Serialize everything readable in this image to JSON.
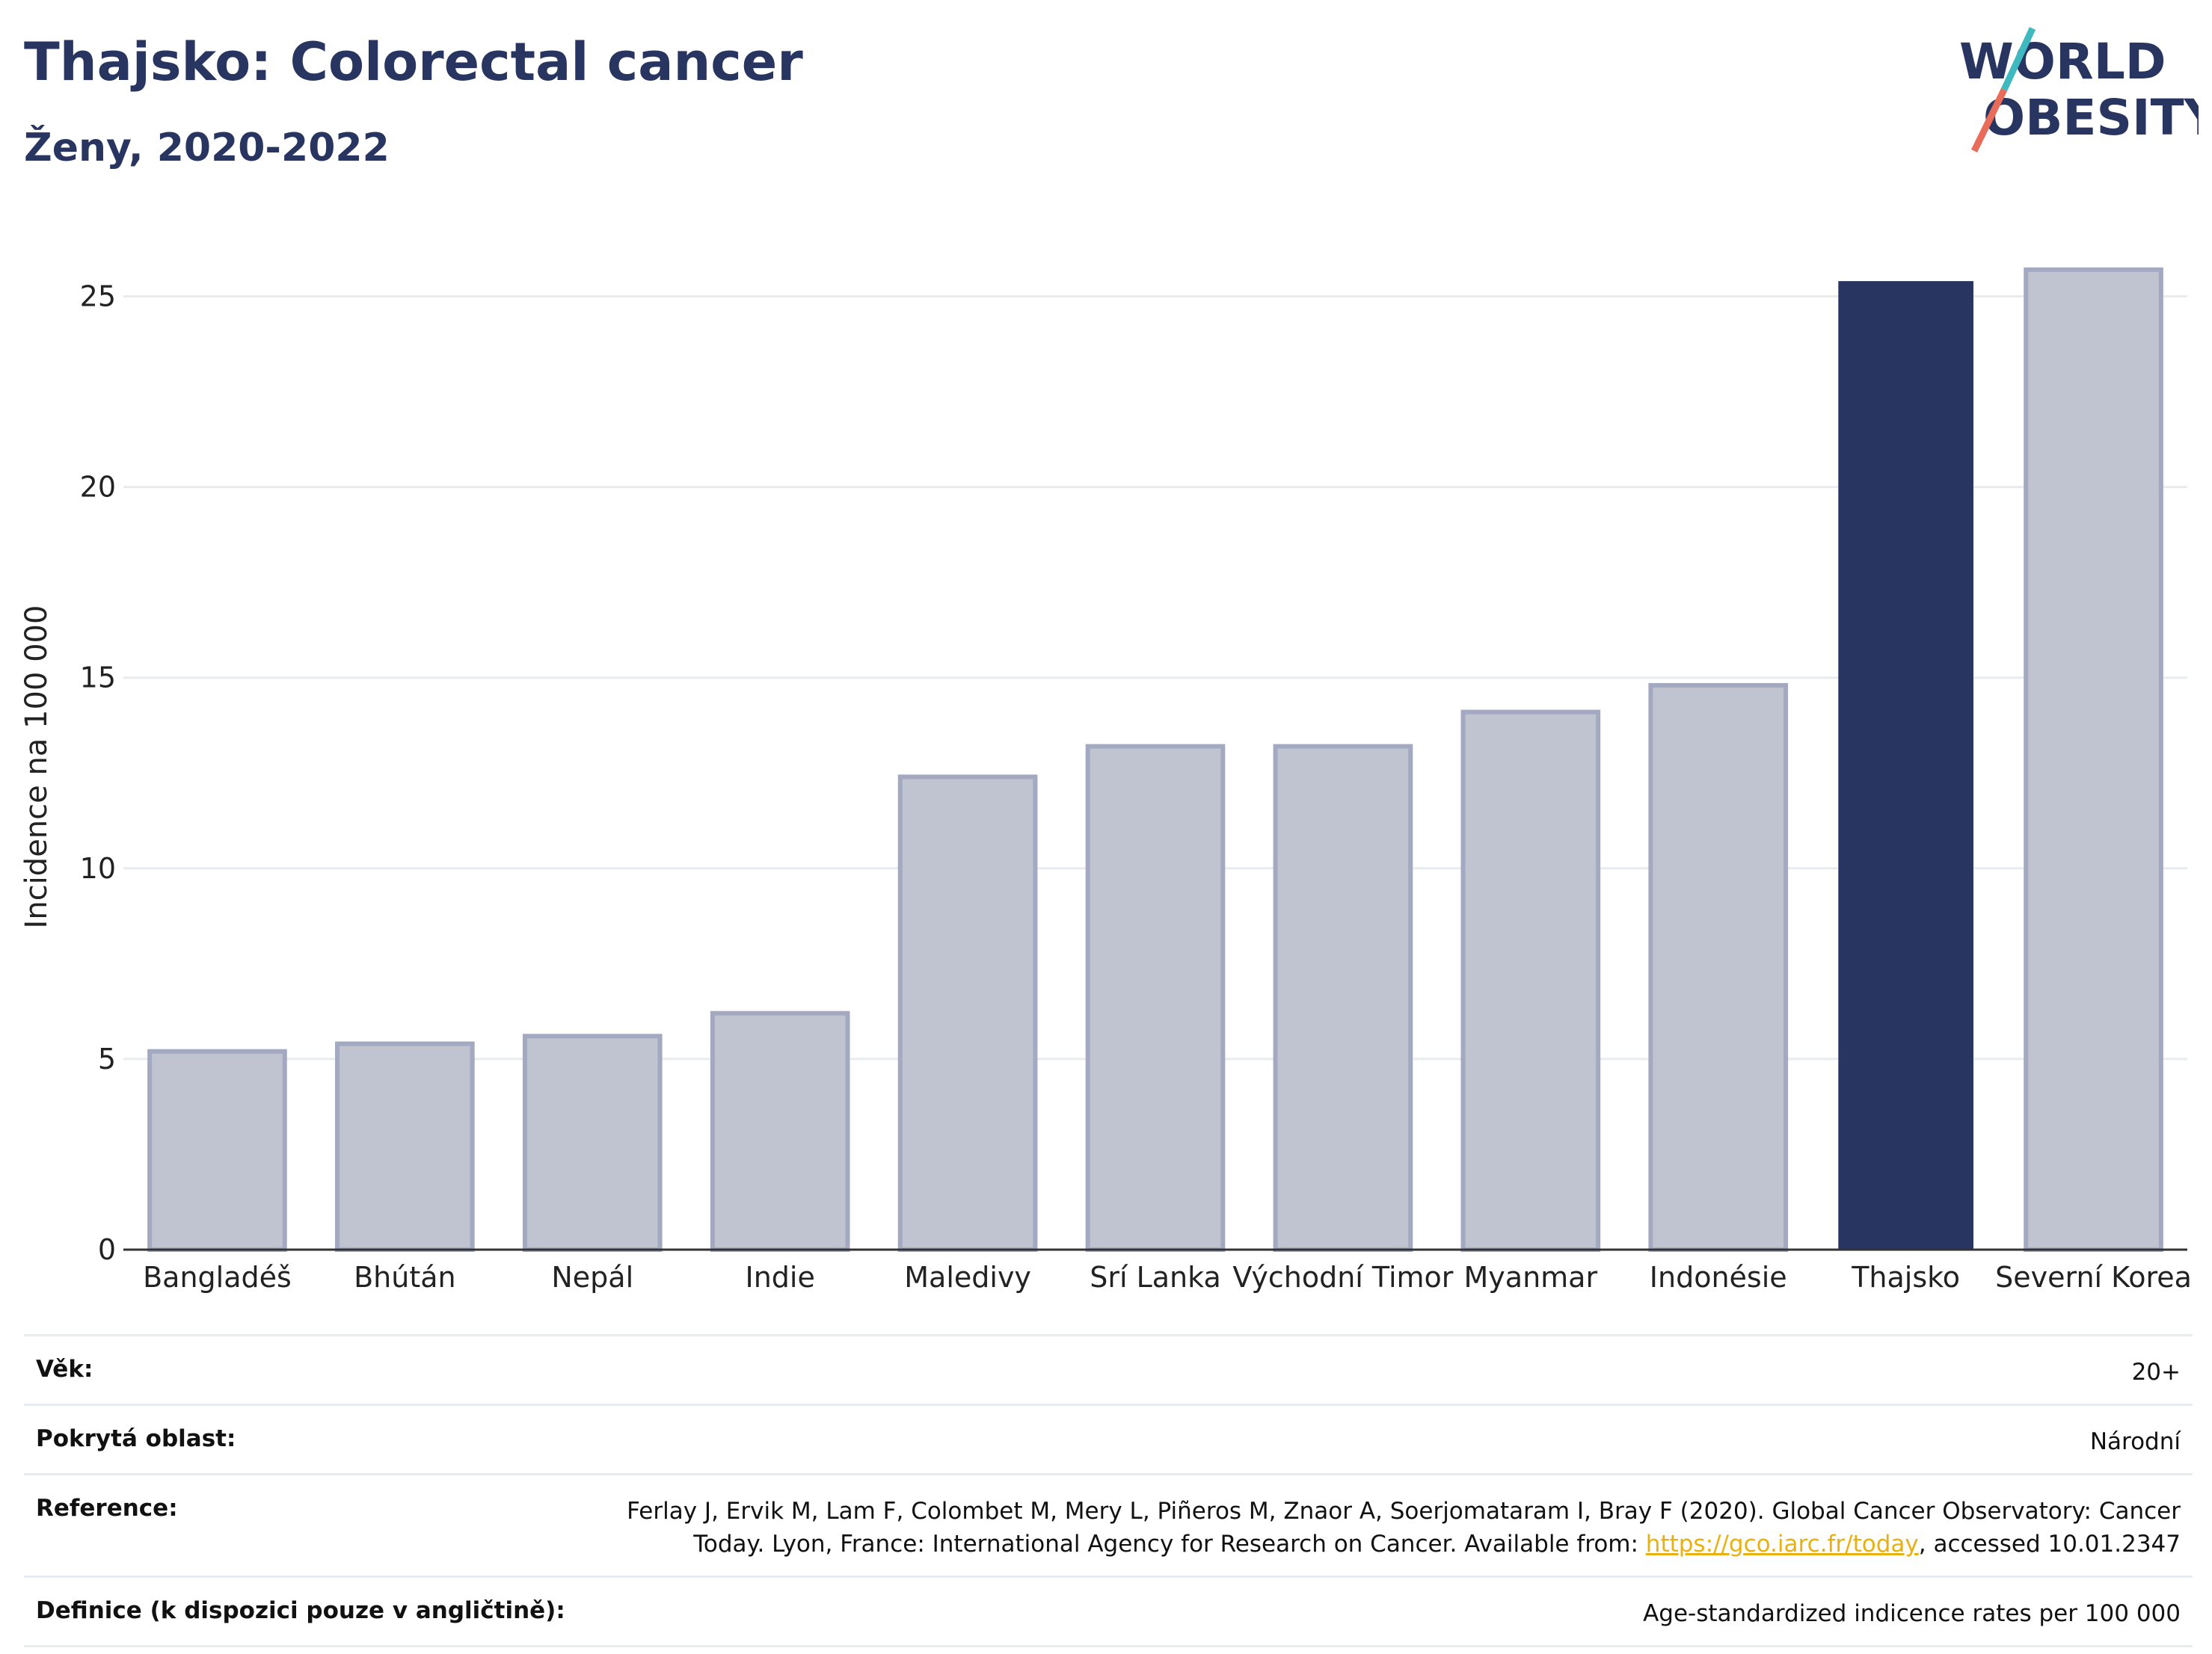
{
  "header": {
    "title": "Thajsko: Colorectal cancer",
    "subtitle": "Ženy, 2020-2022",
    "logo_line1": "WORLD",
    "logo_line2": "OBESITY"
  },
  "colors": {
    "highlight": "#283560",
    "other": "#c0c3d0",
    "other_border": "#a3a9c1",
    "title": "#283560",
    "link": "#e8b10f"
  },
  "chart_data": {
    "type": "bar",
    "categories": [
      "Bangladéš",
      "Bhútán",
      "Nepál",
      "Indie",
      "Maledivy",
      "Srí Lanka",
      "Východní Timor",
      "Myanmar",
      "Indonésie",
      "Thajsko",
      "Severní Korea"
    ],
    "values": [
      5.2,
      5.4,
      5.6,
      6.2,
      12.4,
      13.2,
      13.2,
      14.1,
      14.8,
      25.4,
      25.7
    ],
    "highlight": "Thajsko",
    "ylabel": "Incidence na 100 000",
    "xlabel": "",
    "ylim": [
      0,
      26.5
    ],
    "yticks": [
      0,
      5,
      10,
      15,
      20,
      25
    ],
    "grid": true
  },
  "meta": {
    "age_label": "Věk:",
    "age_value": "20+",
    "area_label": "Pokrytá oblast:",
    "area_value": "Národní",
    "reference_label": "Reference:",
    "reference_text_1": "Ferlay J, Ervik M, Lam F, Colombet M, Mery L, Piñeros M, Znaor A, Soerjomataram I, Bray F (2020). Global Cancer Observatory: Cancer Today. Lyon, France: International Agency for Research on Cancer. Available from: ",
    "reference_link": "https://gco.iarc.fr/today",
    "reference_text_2": ", accessed 10.01.2347",
    "definition_label": "Definice (k dispozici pouze v angličtině):",
    "definition_value": "Age-standardized indicence rates per 100 000"
  }
}
